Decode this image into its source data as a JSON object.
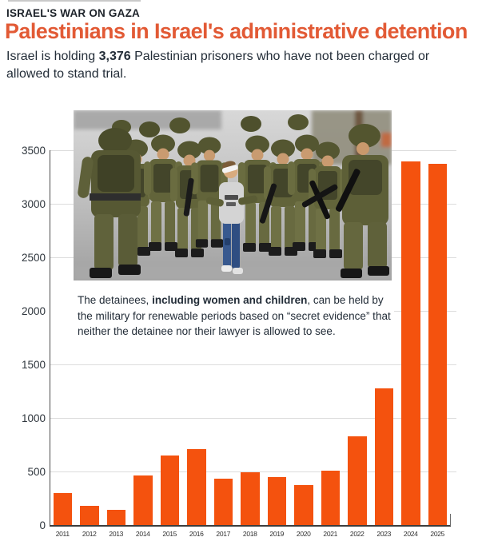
{
  "header": {
    "kicker": "ISRAEL'S WAR ON GAZA",
    "title": "Palestinians in Israel's administrative detention",
    "subtitle": {
      "pre": "Israel is holding ",
      "bold": "3,376",
      "post": " Palestinian prisoners who have not been charged or allowed to stand trial."
    }
  },
  "photo": {
    "alt": "Israeli soldiers in combat gear escort a blindfolded Palestinian boy through a street"
  },
  "caption": {
    "pre": "The detainees, ",
    "bold": "including women and children",
    "post": ", can be held by the military for renewable periods based on “secret evidence” that neither the detainee nor their lawyer is allowed to see."
  },
  "chart_data": {
    "type": "bar",
    "title": "Palestinians in Israel's administrative detention",
    "categories": [
      "2011",
      "2012",
      "2013",
      "2014",
      "2015",
      "2016",
      "2017",
      "2018",
      "2019",
      "2020",
      "2021",
      "2022",
      "2023",
      "2024",
      "2025"
    ],
    "values": [
      300,
      180,
      145,
      465,
      650,
      710,
      440,
      495,
      455,
      380,
      510,
      835,
      1280,
      3400,
      3376
    ],
    "xlabel": "",
    "ylabel": "",
    "ylim": [
      0,
      3500
    ],
    "ytick_step": 500,
    "yticks": [
      0,
      500,
      1000,
      1500,
      2000,
      2500,
      3000,
      3500
    ],
    "grid": true,
    "legend": "none",
    "bar_color": "#f4520e"
  },
  "colors": {
    "title_orange": "#e25a35",
    "bar_orange": "#f4520e",
    "text_dark": "#232d38",
    "kicker_dark": "#1c2229",
    "gridline": "#dcdcdc",
    "axis": "#4b4b4b",
    "background": "#ffffff"
  }
}
